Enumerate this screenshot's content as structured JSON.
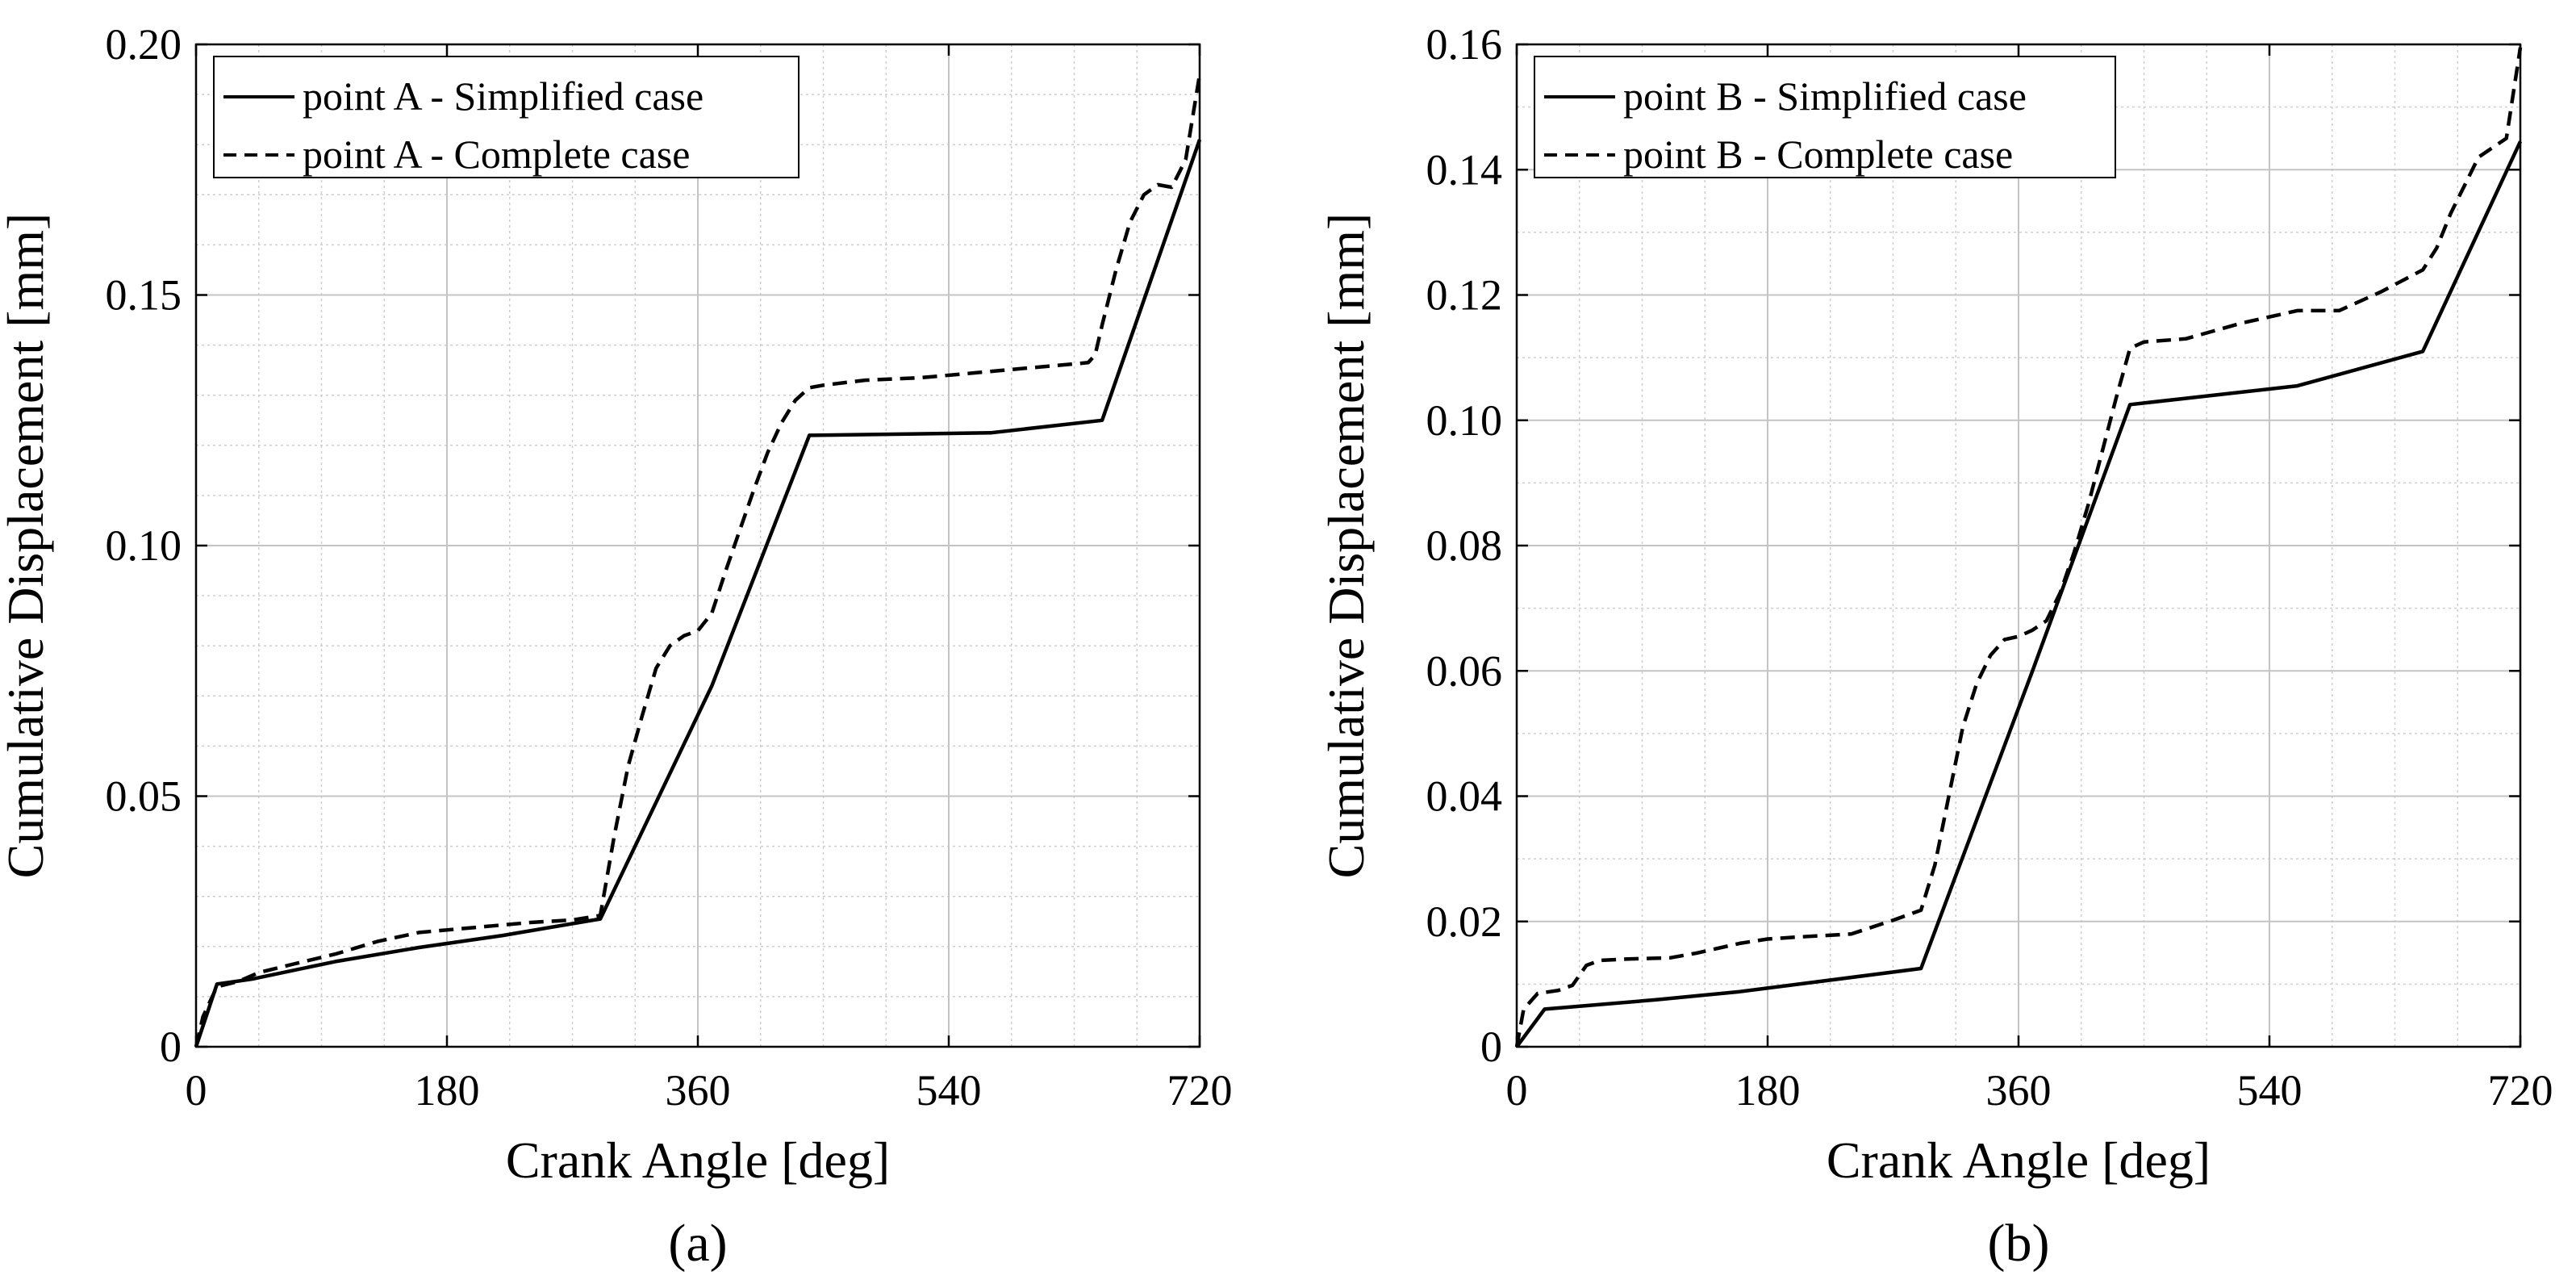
{
  "chart_data": [
    {
      "type": "line",
      "panel_label": "(a)",
      "xlabel": "Crank Angle [deg]",
      "ylabel": "Cumulative Displacement [mm]",
      "xlim": [
        0,
        720
      ],
      "ylim": [
        0,
        0.2
      ],
      "xticks": [
        0,
        180,
        360,
        540,
        720
      ],
      "yticks": [
        0,
        0.05,
        0.1,
        0.15,
        0.2
      ],
      "xtick_labels": [
        "0",
        "180",
        "360",
        "540",
        "720"
      ],
      "ytick_labels": [
        "0",
        "0.05",
        "0.10",
        "0.15",
        "0.20"
      ],
      "grid": true,
      "minor_grid": true,
      "legend_position": "top-left",
      "series": [
        {
          "name": "point A - Simplified case",
          "style": "solid",
          "x": [
            0,
            15,
            40,
            100,
            160,
            220,
            290,
            370,
            440,
            570,
            650,
            720
          ],
          "y": [
            0,
            0.0125,
            0.0135,
            0.017,
            0.0198,
            0.0222,
            0.0255,
            0.072,
            0.122,
            0.1225,
            0.125,
            0.181
          ]
        },
        {
          "name": "point A - Complete case",
          "style": "dashed",
          "x": [
            0,
            5,
            15,
            30,
            45,
            70,
            100,
            130,
            160,
            200,
            240,
            270,
            290,
            300,
            310,
            320,
            330,
            340,
            350,
            360,
            370,
            380,
            390,
            400,
            410,
            420,
            430,
            440,
            450,
            480,
            520,
            560,
            600,
            640,
            645,
            650,
            660,
            670,
            680,
            690,
            700,
            710,
            720
          ],
          "y": [
            0,
            0.006,
            0.012,
            0.013,
            0.0148,
            0.0165,
            0.0185,
            0.021,
            0.0228,
            0.0238,
            0.0248,
            0.0253,
            0.0262,
            0.042,
            0.056,
            0.066,
            0.0755,
            0.08,
            0.082,
            0.083,
            0.0865,
            0.095,
            0.103,
            0.111,
            0.1185,
            0.1245,
            0.129,
            0.1315,
            0.132,
            0.133,
            0.1335,
            0.1345,
            0.1355,
            0.1365,
            0.138,
            0.144,
            0.155,
            0.1645,
            0.17,
            0.172,
            0.1715,
            0.177,
            0.194
          ]
        }
      ]
    },
    {
      "type": "line",
      "panel_label": "(b)",
      "xlabel": "Crank Angle [deg]",
      "ylabel": "Cumulative Displacement [mm]",
      "xlim": [
        0,
        720
      ],
      "ylim": [
        0,
        0.16
      ],
      "xticks": [
        0,
        180,
        360,
        540,
        720
      ],
      "yticks": [
        0,
        0.02,
        0.04,
        0.06,
        0.08,
        0.1,
        0.12,
        0.14,
        0.16
      ],
      "xtick_labels": [
        "0",
        "180",
        "360",
        "540",
        "720"
      ],
      "ytick_labels": [
        "0",
        "0.02",
        "0.04",
        "0.06",
        "0.08",
        "0.10",
        "0.12",
        "0.14",
        "0.16"
      ],
      "grid": true,
      "minor_grid": true,
      "legend_position": "top-left",
      "series": [
        {
          "name": "point B - Simplified case",
          "style": "solid",
          "x": [
            0,
            20,
            100,
            160,
            220,
            290,
            370,
            440,
            560,
            650,
            720
          ],
          "y": [
            0,
            0.006,
            0.0075,
            0.0088,
            0.0105,
            0.0125,
            0.06,
            0.1025,
            0.1055,
            0.111,
            0.1445
          ]
        },
        {
          "name": "point B - Complete case",
          "style": "dashed",
          "x": [
            0,
            5,
            15,
            30,
            40,
            50,
            60,
            80,
            110,
            130,
            160,
            180,
            200,
            240,
            270,
            290,
            300,
            310,
            320,
            330,
            340,
            350,
            360,
            370,
            380,
            390,
            400,
            410,
            420,
            430,
            440,
            450,
            480,
            520,
            560,
            590,
            620,
            650,
            660,
            670,
            680,
            690,
            700,
            710,
            720
          ],
          "y": [
            0,
            0.006,
            0.0085,
            0.009,
            0.0098,
            0.013,
            0.0138,
            0.014,
            0.0142,
            0.015,
            0.0165,
            0.0172,
            0.0175,
            0.018,
            0.0202,
            0.0218,
            0.029,
            0.04,
            0.051,
            0.058,
            0.0625,
            0.065,
            0.0655,
            0.0665,
            0.068,
            0.0725,
            0.079,
            0.0865,
            0.095,
            0.1035,
            0.1115,
            0.1125,
            0.113,
            0.1155,
            0.1175,
            0.1175,
            0.1205,
            0.124,
            0.1275,
            0.133,
            0.1375,
            0.142,
            0.1435,
            0.145,
            0.1595
          ]
        }
      ]
    }
  ]
}
